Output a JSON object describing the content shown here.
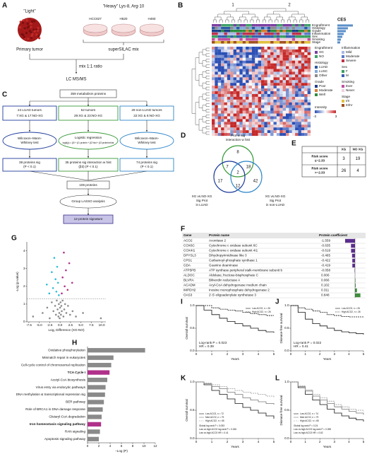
{
  "panel_a": {
    "label": "A",
    "light": "\"Light\"",
    "heavy": "\"Heavy\" Lys-8, Arg-10",
    "cell_lines": [
      "HCC827",
      "H520",
      "H460"
    ],
    "primary": "Primary tumor",
    "mix_name": "superSILAC mix",
    "ratio": "mix 1:1 ratio",
    "ms": "LC MS/MS"
  },
  "panel_b": {
    "label": "B",
    "clusters": [
      "1",
      "2"
    ],
    "tracks": [
      "Engraftment",
      "Histology",
      "Grade",
      "Inflammation",
      "Sex",
      "Smoking",
      "Stage"
    ],
    "ces": "CES",
    "legend": [
      {
        "title": "Engraftment",
        "items": [
          "XG",
          "NO"
        ],
        "colors": [
          "#7b3fa0",
          "#3fa06a"
        ]
      },
      {
        "title": "Histology",
        "items": [
          "LUAD",
          "LUSC",
          "Other"
        ],
        "colors": [
          "#2c5aa0",
          "#7fa8d8",
          "#8a8a8a"
        ]
      },
      {
        "title": "Grade",
        "items": [
          "Poor",
          "Moderate",
          "Well"
        ],
        "colors": [
          "#1f3f8a",
          "#d97a30",
          "#2e8b3e"
        ]
      },
      {
        "title": "Inflammation",
        "items": [
          "Mild",
          "Moderate",
          "Severe"
        ],
        "colors": [
          "#aab8e8",
          "#5a78c8",
          "#c0304a"
        ]
      },
      {
        "title": "Sex",
        "items": [
          "F",
          "M"
        ],
        "colors": [
          "#3aa060",
          "#3a5fb0"
        ]
      },
      {
        "title": "Smoking",
        "items": [
          "Ever",
          "Never"
        ],
        "colors": [
          "#c050a0",
          "#f0d0e0"
        ]
      },
      {
        "title": "Stage",
        "items": [
          "I/II",
          "III/IV"
        ],
        "colors": [
          "#e0c040",
          "#a05020"
        ]
      }
    ],
    "intensity": "Intensity",
    "intensity_ticks": [
      -3,
      3
    ]
  },
  "panel_c": {
    "label": "C",
    "source": "359 metabolism proteins",
    "cohorts": [
      {
        "title": "24 LUAD tumors",
        "detail": "7:XG & 17:NO-XG"
      },
      {
        "title": "52 tumors",
        "detail": "29:XG & 23:NO-XG"
      },
      {
        "title": "28 non-LUAD tumors",
        "detail": "22:XG & 6:NO-XG"
      }
    ],
    "tests": [
      [
        "Wilcoxon–Mann-",
        "Whitney test"
      ],
      [
        "Logistic regression",
        "logit(p) = β0 + β1 protein + β2 hist + β3 protein×hist"
      ],
      [
        "Wilcoxon–Mann-",
        "Whitney test"
      ]
    ],
    "results": [
      [
        "38 proteins sig",
        "(P < 0.1)"
      ],
      [
        "35 proteins sig interaction w hist",
        "(β3) (P < 0.1)"
      ],
      [
        "74 proteins sig",
        "(P < 0.1)"
      ]
    ],
    "union": "106  proteins",
    "lasso": "Group LASSO analysis",
    "signature": "12-protein signature"
  },
  "panel_d": {
    "label": "D",
    "sets": [
      [
        "Prot w sig",
        "interaction w hist"
      ],
      [
        "XG vs.NO-XG",
        "Sig Prot",
        "in LUAD"
      ],
      [
        "XG vs.NO-XG",
        "Sig Prot",
        "in non-LUAD"
      ]
    ],
    "counts": [
      8,
      7,
      2,
      18,
      17,
      12,
      42
    ]
  },
  "panel_e": {
    "label": "E",
    "columns": [
      "XG",
      "NO XG"
    ],
    "rows": [
      {
        "label": [
          "Risk score",
          "≤−2.33"
        ],
        "counts": [
          3,
          19
        ]
      },
      {
        "label": [
          "Risk score",
          ">−2.33"
        ],
        "counts": [
          26,
          4
        ]
      }
    ]
  },
  "panel_f": {
    "label": "F",
    "columns": [
      "Gene",
      "Protein name",
      "Protein coefficient"
    ],
    "negative_color": "#5b2d8e",
    "positive_color": "#3e8e3e",
    "rows": [
      [
        "ACO2",
        "Aconitase 2",
        -1.559
      ],
      [
        "COX6C",
        "Cytochrome c oxidase subunit 6C",
        -0.635
      ],
      [
        "COX4I1",
        "Cytochrome c oxidase subunit 4I1",
        -0.619
      ],
      [
        "DPYSL3",
        "Dihydropyrimidinase like 3",
        -0.465
      ],
      [
        "CPS1",
        "Carbamoyl-phosphate synthase 1",
        -0.422
      ],
      [
        "GDA",
        "Guanine deaminase",
        -0.419
      ],
      [
        "ATP5PB",
        "ATP synthase peripheral stalk-membrane subunit b",
        -0.058
      ],
      [
        "ALDOC",
        "Aldolase, fructose-bisphosphate C",
        0.006
      ],
      [
        "BLVRA",
        "Biliverdin reductase A",
        0.066
      ],
      [
        "ACADM",
        "Acyl-CoA dehydrogenase medium chain",
        0.102
      ],
      [
        "IMPDH2",
        "Inosine monophosphate dehydrogenase 2",
        0.311
      ],
      [
        "OAS3",
        "2'-5'-oligoadenylate synthetase 3",
        0.848
      ]
    ]
  },
  "chart_data": [
    {
      "type": "scatter",
      "panel": "G",
      "xlabel": "Log₂ Difference (XG-NO)",
      "ylabel": "-Log (p value)",
      "xlim": [
        -8,
        11
      ],
      "xticks": [
        -7.5,
        {
          "value": -5,
          "label": "-5.0"
        },
        -2.5,
        {
          "value": 0,
          "label": "0.0"
        },
        2.5,
        {
          "value": 5,
          "label": "5.0"
        },
        7.5,
        {
          "value": 10,
          "label": "10.0"
        }
      ],
      "ylim": [
        0,
        4.5
      ],
      "yticks": [
        0,
        1,
        2,
        3,
        4
      ],
      "threshold": 1.3,
      "series": [
        {
          "color": "#8c8c8c",
          "x": [
            -6.5,
            -4.2,
            -3.1,
            -2.5,
            -2,
            -1.6,
            -1.2,
            -1,
            -0.8,
            -0.6,
            -0.4,
            -0.3,
            -0.2,
            -0.1,
            0,
            0.1,
            0.2,
            0.3,
            0.4,
            0.6,
            0.8,
            1,
            1.2,
            1.5,
            1.9,
            2.4,
            3,
            3.8,
            5.5,
            9.8
          ],
          "values": [
            0.3,
            0.5,
            0.8,
            0.2,
            1.1,
            0.6,
            0.9,
            0.4,
            1.2,
            0.7,
            0.3,
            1,
            0.5,
            0.2,
            0.8,
            1.1,
            0.4,
            0.9,
            0.6,
            1.2,
            0.3,
            0.7,
            1,
            0.5,
            0.9,
            0.4,
            0.6,
            0.3,
            0.5,
            0.2
          ]
        },
        {
          "color": "#2fbdd6",
          "x": [
            -3.2,
            -2.6,
            -2,
            -1.7,
            -1.4,
            -1.1,
            -0.9,
            -0.7,
            -0.5,
            -0.3
          ],
          "values": [
            2.1,
            1.6,
            2.8,
            1.9,
            3.6,
            2.4,
            1.7,
            3.1,
            2.2,
            1.5
          ]
        },
        {
          "color": "#b0308a",
          "x": [
            0.4,
            0.6,
            0.9,
            1.1,
            1.4,
            1.8,
            2.2,
            2.9
          ],
          "values": [
            1.6,
            2.5,
            3.9,
            2,
            2.9,
            1.8,
            3.3,
            2.2
          ]
        }
      ]
    },
    {
      "type": "bar",
      "orientation": "horizontal",
      "panel": "H",
      "xlabel": "−Log (P)",
      "categories": [
        "Oxidative phosphorylation",
        "Mismatch repair in eukaryotes",
        "Cell-cycle control of chromosomal replication",
        "TCA Cycle I",
        "Acetyl-CoA biosynthesis",
        "Virus entry via endocytic pathways",
        "DNA methylation & transcriptional repression sig",
        "BER pathway",
        "Role of BRCA1 in DNA damage response",
        "Glutaryl-CoA degradation",
        "Iron homeostasis signaling pathway",
        "RAN signaling",
        "Apoptosis signaling pathway"
      ],
      "values": [
        10.2,
        4.6,
        4.2,
        3.9,
        3.5,
        3.2,
        3.1,
        2.9,
        2.7,
        2.5,
        2.4,
        2.2,
        2.0
      ],
      "colors": [
        "#8a8a8a",
        "#8a8a8a",
        "#8a8a8a",
        "#b0308a",
        "#8a8a8a",
        "#8a8a8a",
        "#8a8a8a",
        "#8a8a8a",
        "#8a8a8a",
        "#8a8a8a",
        "#b0308a",
        "#8a8a8a",
        "#8a8a8a"
      ],
      "font_weights": [
        "normal",
        "normal",
        "normal",
        "bold",
        "normal",
        "normal",
        "normal",
        "normal",
        "normal",
        "normal",
        "bold",
        "normal",
        "normal"
      ],
      "xlim": [
        0,
        12
      ],
      "xticks": [
        0,
        2,
        4,
        6,
        8,
        10,
        12
      ]
    },
    {
      "type": "line",
      "panel": "I",
      "ylabel": "Overall survival",
      "xlabel": "Years",
      "legend_position": "top-right",
      "xlim": [
        0,
        5
      ],
      "xticks": [
        0,
        1,
        2,
        3,
        4,
        5
      ],
      "ylim": [
        0,
        1
      ],
      "yticks": [
        {
          "value": 0,
          "label": "0.0"
        },
        0.5,
        {
          "value": 1,
          "label": "1.0"
        }
      ],
      "x": [
        0,
        0.5,
        1,
        1.5,
        2,
        2.5,
        3,
        3.5,
        4,
        4.5,
        5
      ],
      "series": [
        {
          "name": "Low ACO2, n = 26",
          "color": "#111111",
          "dash": "solid",
          "values": [
            1,
            0.9,
            0.8,
            0.72,
            0.65,
            0.6,
            0.55,
            0.5,
            0.45,
            0.42,
            0.4
          ]
        },
        {
          "name": "High ACO2, n = 26",
          "color": "#111111",
          "dash": "dashed",
          "values": [
            1,
            1,
            0.95,
            0.92,
            0.9,
            0.88,
            0.85,
            0.82,
            0.8,
            0.78,
            0.78
          ]
        }
      ],
      "annotations": [
        "Log-rank P = 0.023",
        "HR = 0.39"
      ]
    },
    {
      "type": "line",
      "panel": "J",
      "ylabel": "Disease-free survival",
      "xlabel": "Years",
      "legend_position": "top-right",
      "xlim": [
        0,
        5
      ],
      "xticks": [
        0,
        1,
        2,
        3,
        4,
        5
      ],
      "ylim": [
        0,
        1
      ],
      "yticks": [
        {
          "value": 0,
          "label": "0.0"
        },
        0.5,
        {
          "value": 1,
          "label": "1.0"
        }
      ],
      "x": [
        0,
        0.5,
        1,
        1.5,
        2,
        2.5,
        3,
        3.5,
        4,
        4.5,
        5
      ],
      "series": [
        {
          "name": "Low ACO2, n = 26",
          "color": "#111111",
          "dash": "solid",
          "values": [
            1,
            0.85,
            0.7,
            0.6,
            0.55,
            0.5,
            0.45,
            0.42,
            0.4,
            0.38,
            0.36
          ]
        },
        {
          "name": "High ACO2, n = 26",
          "color": "#111111",
          "dash": "dashed",
          "values": [
            1,
            0.95,
            0.92,
            0.88,
            0.85,
            0.8,
            0.78,
            0.76,
            0.75,
            0.75,
            0.75
          ]
        }
      ],
      "annotations": [
        "Log-rank P = 0.022",
        "HR = 0.41"
      ]
    },
    {
      "type": "line",
      "panel": "K",
      "ylabel": "Overall survival",
      "xlabel": "Years",
      "legend_position": "bottom-left",
      "xlim": [
        0,
        5
      ],
      "xticks": [
        0,
        1,
        2,
        3,
        4,
        5
      ],
      "ylim": [
        0,
        1
      ],
      "yticks": [
        {
          "value": 0,
          "label": "0.0"
        },
        0.5,
        {
          "value": 1,
          "label": "1.0"
        }
      ],
      "x": [
        0,
        0.5,
        1,
        1.5,
        2,
        2.5,
        3,
        3.5,
        4,
        4.5,
        5
      ],
      "series": [
        {
          "name": "Low ACO2, n = 72",
          "color": "#111111",
          "dash": "solid",
          "values": [
            1,
            0.95,
            0.85,
            0.78,
            0.7,
            0.62,
            0.55,
            0.5,
            0.45,
            0.4,
            0.35
          ]
        },
        {
          "name": "Med ACO2, n = 79",
          "color": "#777777",
          "dash": "solid",
          "values": [
            1,
            0.97,
            0.92,
            0.88,
            0.82,
            0.78,
            0.72,
            0.68,
            0.65,
            0.62,
            0.6
          ]
        },
        {
          "name": "High ACO2, n = 65",
          "color": "#999999",
          "dash": "dashed",
          "values": [
            1,
            0.98,
            0.95,
            0.92,
            0.88,
            0.85,
            0.82,
            0.8,
            0.78,
            0.75,
            0.72
          ]
        }
      ],
      "annotations": [
        "Global log rank P = 0.053",
        "Low vs.high ACO2 log rank P = 0.026",
        "Low vs.high ACO2 HR = 0.41"
      ]
    },
    {
      "type": "line",
      "panel": "L",
      "ylabel": "Disease-free survival",
      "xlabel": "Years",
      "legend_position": "bottom-left",
      "xlim": [
        0,
        5
      ],
      "xticks": [
        0,
        1,
        2,
        3,
        4,
        5
      ],
      "ylim": [
        0,
        1
      ],
      "yticks": [
        {
          "value": 0,
          "label": "0.0"
        },
        0.5,
        {
          "value": 1,
          "label": "1.0"
        }
      ],
      "x": [
        0,
        0.5,
        1,
        1.5,
        2,
        2.5,
        3,
        3.5,
        4,
        4.5,
        5
      ],
      "series": [
        {
          "name": "Low ACO2, n = 74",
          "color": "#111111",
          "dash": "solid",
          "values": [
            1,
            0.9,
            0.78,
            0.68,
            0.6,
            0.52,
            0.45,
            0.4,
            0.36,
            0.33,
            0.3
          ]
        },
        {
          "name": "Med ACO2, n = 79",
          "color": "#777777",
          "dash": "solid",
          "values": [
            1,
            0.92,
            0.84,
            0.75,
            0.68,
            0.62,
            0.56,
            0.52,
            0.48,
            0.45,
            0.42
          ]
        },
        {
          "name": "High ACO2, n = 65",
          "color": "#999999",
          "dash": "dashed",
          "values": [
            1,
            0.93,
            0.86,
            0.78,
            0.72,
            0.66,
            0.6,
            0.56,
            0.52,
            0.5,
            0.48
          ]
        }
      ],
      "annotations": [
        "Global log rank P = 0.24",
        "Low vs.high ACO2 log rank P = 0.095",
        "Low vs.high ACO2 HR = 0.62"
      ]
    }
  ]
}
